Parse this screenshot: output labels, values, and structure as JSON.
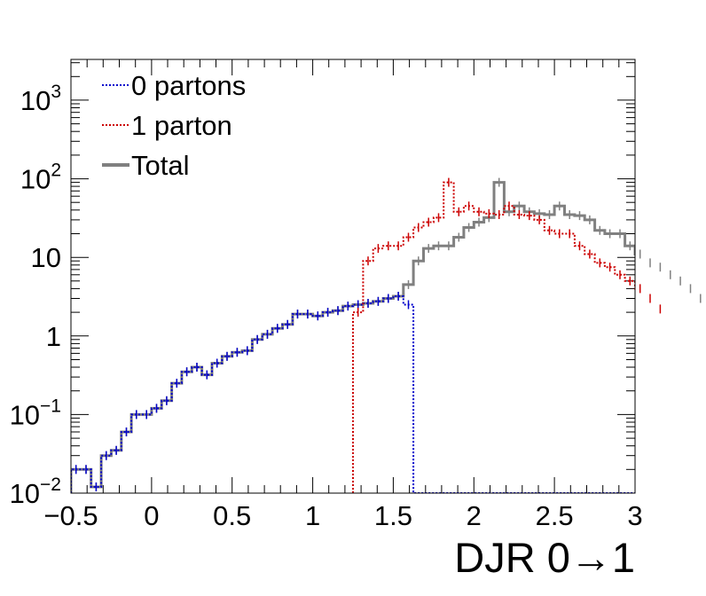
{
  "chart_data": {
    "type": "line",
    "style": "step-histogram",
    "xlabel": "DJR 0→1",
    "ylabel": "",
    "xlim": [
      -0.5,
      3.0
    ],
    "ylim": [
      0.01,
      3300
    ],
    "yscale": "log",
    "bin_width": 0.0625,
    "grid": false,
    "legend_position": "top-left",
    "x_tick_labels": [
      {
        "value": -0.5,
        "label": "−0.5"
      },
      {
        "value": 0,
        "label": "0"
      },
      {
        "value": 0.5,
        "label": "0.5"
      },
      {
        "value": 1,
        "label": "1"
      },
      {
        "value": 1.5,
        "label": "1.5"
      },
      {
        "value": 2,
        "label": "2"
      },
      {
        "value": 2.5,
        "label": "2.5"
      },
      {
        "value": 3,
        "label": "3"
      }
    ],
    "y_tick_labels": [
      {
        "value": 0.01,
        "base": "10",
        "exp": "−2"
      },
      {
        "value": 0.1,
        "base": "10",
        "exp": "−1"
      },
      {
        "value": 1,
        "base": "1",
        "exp": ""
      },
      {
        "value": 10,
        "base": "10",
        "exp": ""
      },
      {
        "value": 100,
        "base": "10",
        "exp": "2"
      },
      {
        "value": 1000,
        "base": "10",
        "exp": "3"
      }
    ],
    "series": [
      {
        "name": "0 partons",
        "color": "#0000cc",
        "line": "dotted",
        "x_start": -0.5,
        "values": [
          0.02,
          0.02,
          0.012,
          0.03,
          0.035,
          0.06,
          0.1,
          0.1,
          0.12,
          0.15,
          0.25,
          0.35,
          0.4,
          0.32,
          0.45,
          0.55,
          0.62,
          0.65,
          0.9,
          1.05,
          1.25,
          1.4,
          1.9,
          1.9,
          1.8,
          2.0,
          2.1,
          2.4,
          2.5,
          2.6,
          2.75,
          3.0,
          3.2,
          2.5,
          0.01,
          0.01,
          0.01,
          0.01,
          0.01,
          0.01,
          0.01,
          0.01,
          0.01,
          0.01,
          0.01,
          0.01,
          0.01,
          0.01,
          0.01,
          0.01,
          0.01,
          0.01,
          0.01,
          0.01,
          0.01,
          0.01
        ]
      },
      {
        "name": "1 parton",
        "color": "#cc0000",
        "line": "dotted",
        "x_start": 1.25,
        "values": [
          2.0,
          9.0,
          13.0,
          14.0,
          14.0,
          18.0,
          24.0,
          28.0,
          32.0,
          90.0,
          38.0,
          45.0,
          38.0,
          36.0,
          35.0,
          45.0,
          35.0,
          34.0,
          30.0,
          22.0,
          20.0,
          20.0,
          14.0,
          11.0,
          8.5,
          7.5,
          6.0,
          5.0,
          4.0,
          3.0,
          2.2
        ]
      },
      {
        "name": "Total",
        "color": "#808080",
        "line": "solid",
        "x_start": -0.5,
        "values": [
          0.02,
          0.02,
          0.012,
          0.03,
          0.035,
          0.06,
          0.1,
          0.1,
          0.12,
          0.15,
          0.25,
          0.35,
          0.4,
          0.32,
          0.45,
          0.55,
          0.62,
          0.65,
          0.9,
          1.05,
          1.25,
          1.4,
          1.9,
          1.9,
          1.8,
          2.0,
          2.1,
          2.4,
          2.5,
          2.6,
          2.75,
          3.0,
          3.2,
          4.5,
          9.0,
          13.0,
          14.0,
          14.0,
          18.0,
          24.0,
          28.0,
          32.0,
          90.0,
          38.0,
          45.0,
          38.0,
          36.0,
          35.0,
          45.0,
          35.0,
          34.0,
          30.0,
          22.0,
          20.0,
          20.0,
          14.0,
          11.0,
          8.5,
          7.5,
          6.0,
          5.0,
          4.0,
          3.0,
          2.2
        ]
      }
    ]
  },
  "legend": {
    "entries": [
      {
        "label": "0 partons",
        "color": "#0000cc",
        "line": "dotted"
      },
      {
        "label": "1 parton",
        "color": "#cc0000",
        "line": "dotted"
      },
      {
        "label": "Total",
        "color": "#808080",
        "line": "solid"
      }
    ]
  }
}
